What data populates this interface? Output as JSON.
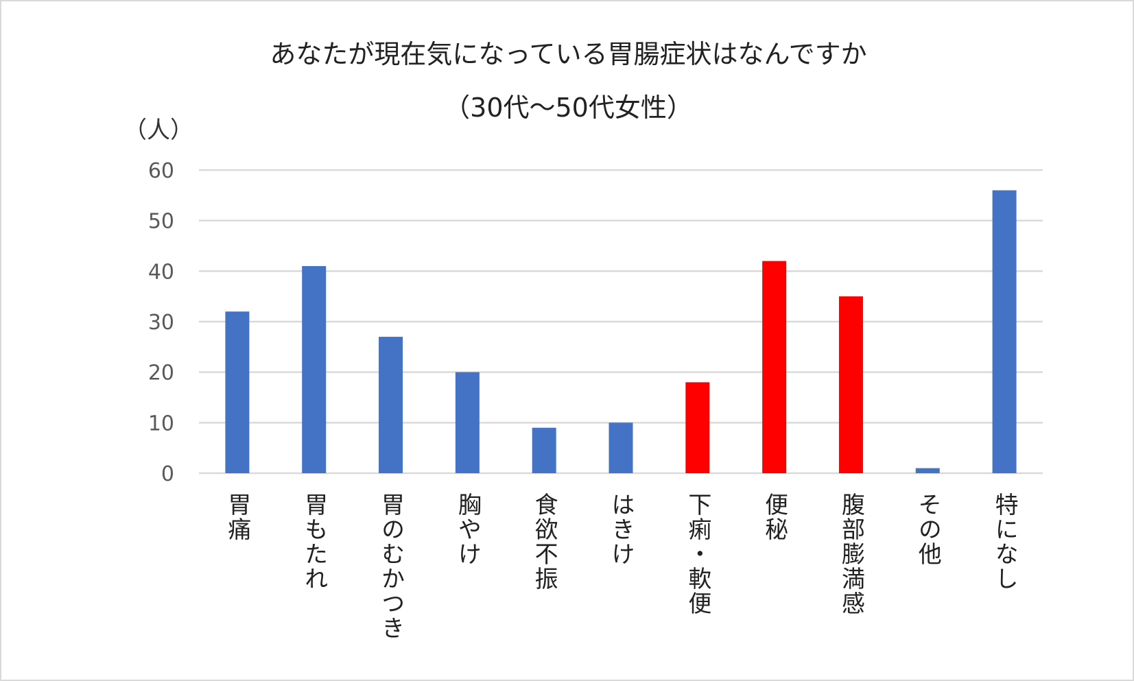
{
  "chart_data": {
    "type": "bar",
    "title": "あなたが現在気になっている胃腸症状はなんですか",
    "subtitle": "（30代～50代女性）",
    "ylabel": "（人）",
    "xlabel": "",
    "ylim": [
      0,
      60
    ],
    "yticks": [
      0,
      10,
      20,
      30,
      40,
      50,
      60
    ],
    "grid": true,
    "categories": [
      "胃痛",
      "胃もたれ",
      "胃のむかつき",
      "胸やけ",
      "食欲不振",
      "はきけ",
      "下痢・軟便",
      "便秘",
      "腹部膨満感",
      "その他",
      "特になし"
    ],
    "values": [
      32,
      41,
      27,
      20,
      9,
      10,
      18,
      42,
      35,
      1,
      56
    ],
    "bar_colors": [
      "#4472C4",
      "#4472C4",
      "#4472C4",
      "#4472C4",
      "#4472C4",
      "#4472C4",
      "#FF0000",
      "#FF0000",
      "#FF0000",
      "#4472C4",
      "#4472C4"
    ]
  }
}
